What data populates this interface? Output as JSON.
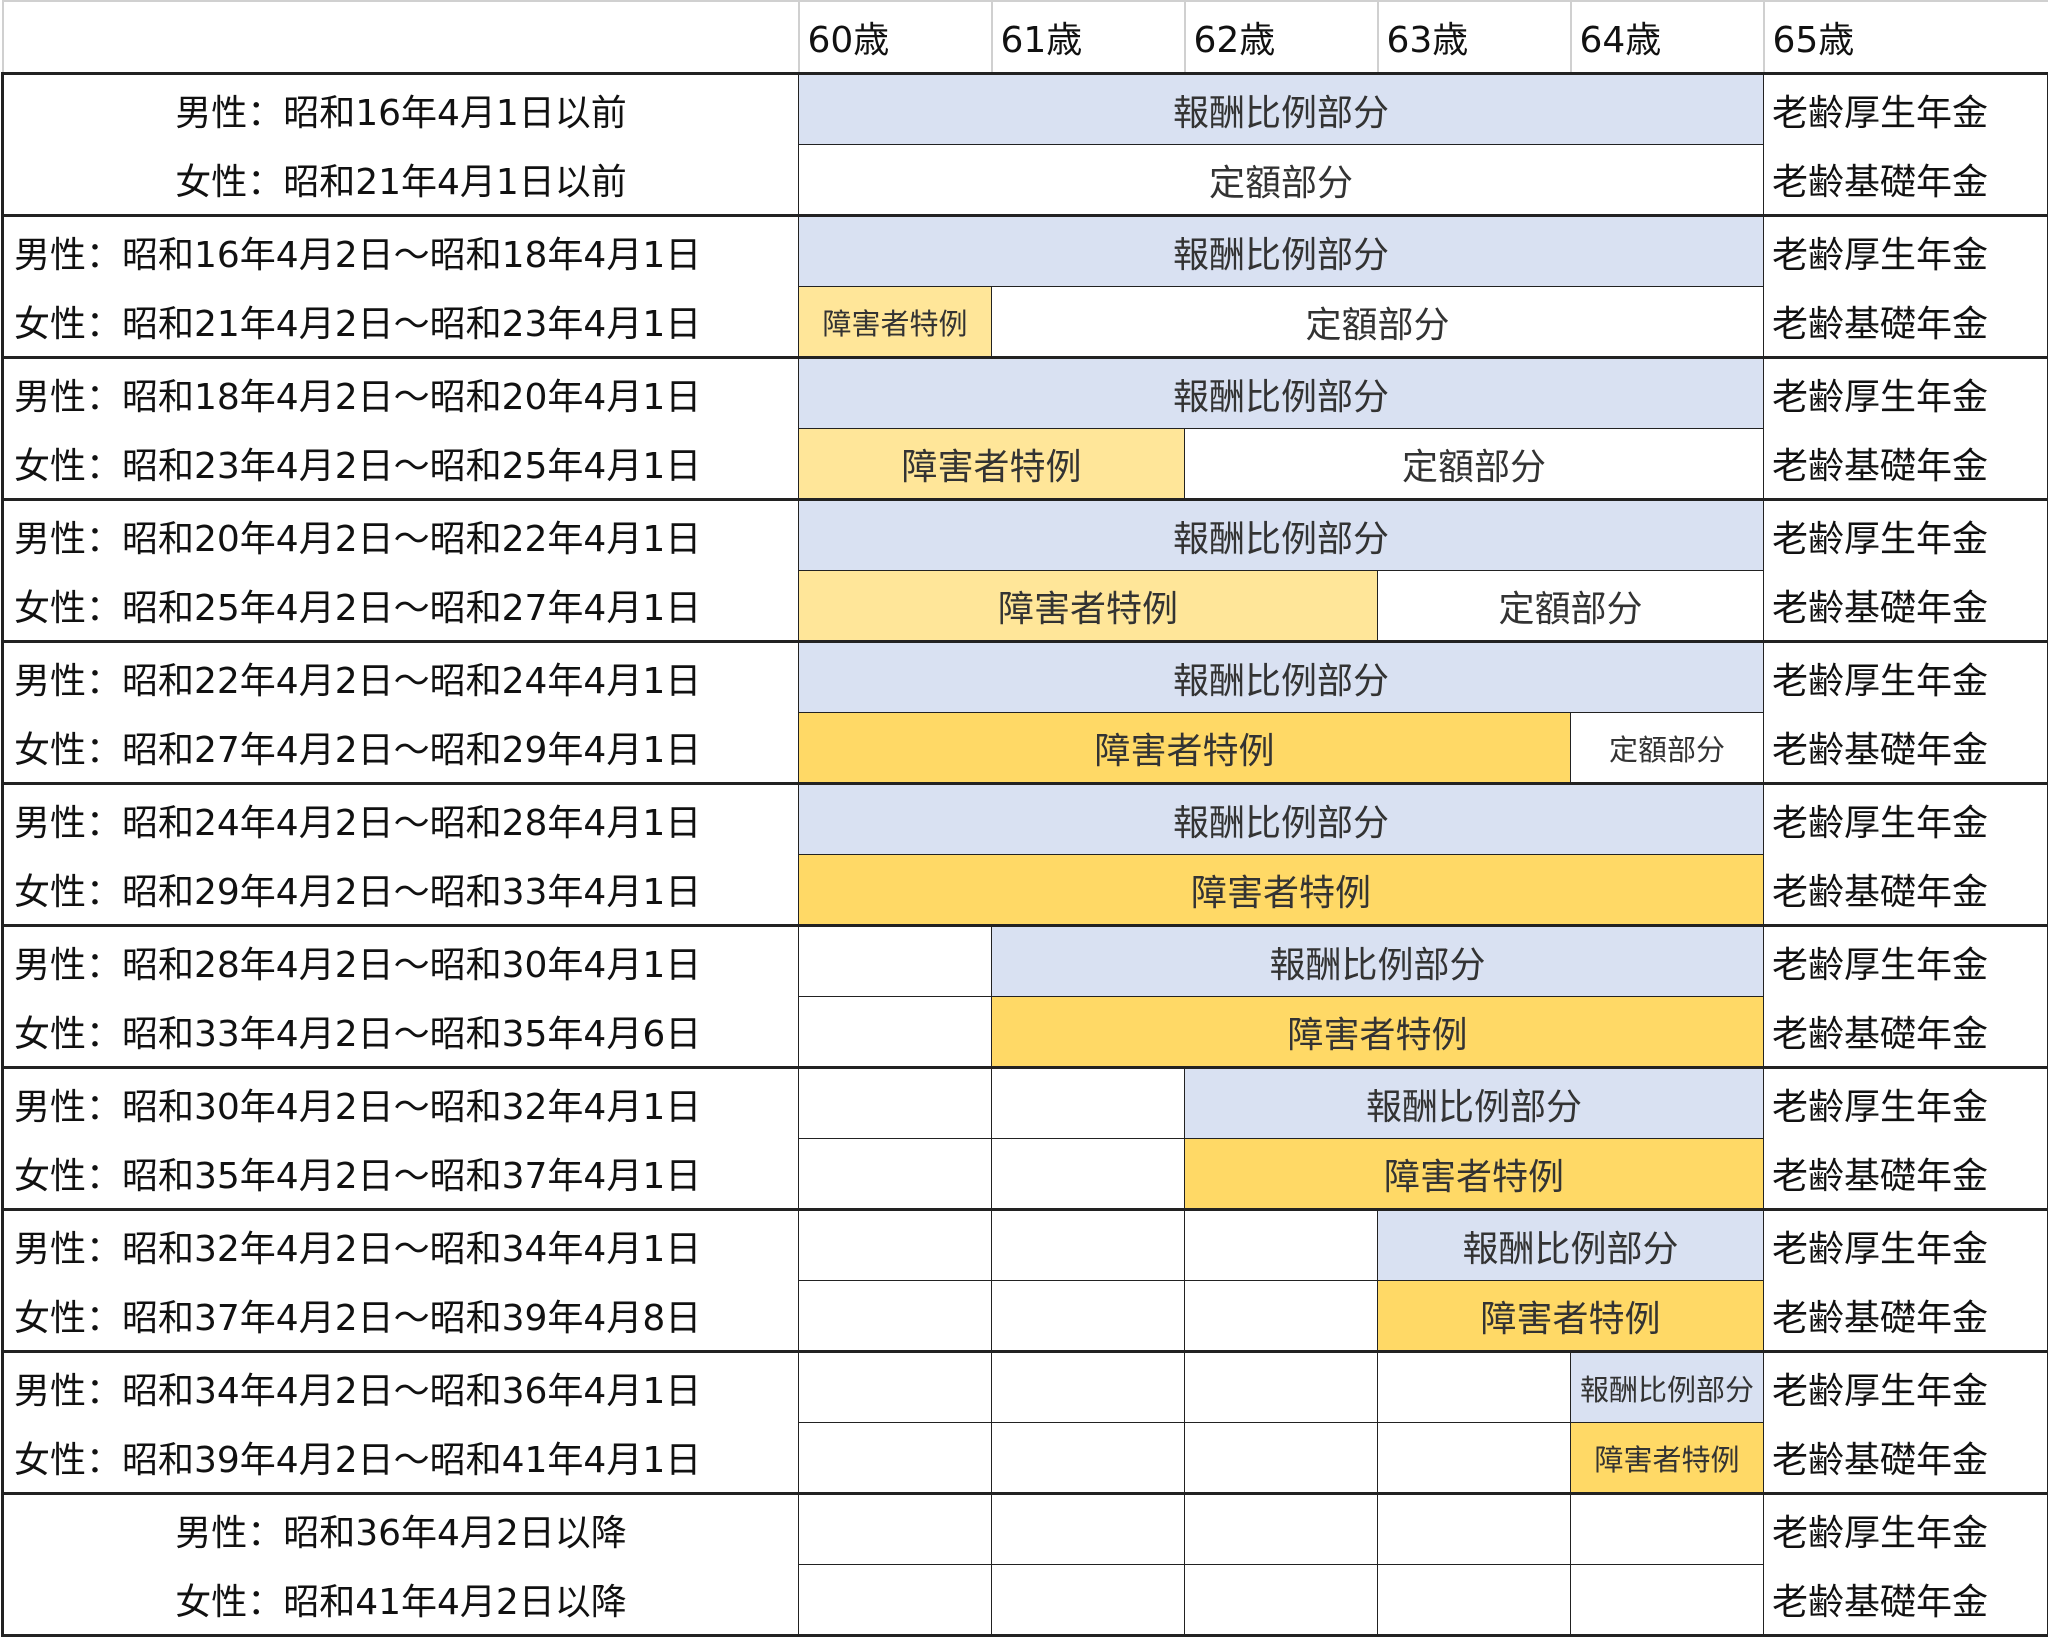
{
  "header": {
    "corner": "",
    "ages": [
      "60歳",
      "61歳",
      "62歳",
      "63歳",
      "64歳",
      "65歳"
    ]
  },
  "colors": {
    "blue": "#D9E1F2",
    "lightyellow": "#FFE699",
    "gold": "#FFD966"
  },
  "groups": [
    {
      "center": true,
      "rows": [
        {
          "label": "男性：昭和16年4月1日以前",
          "pension": "老齢厚生年金",
          "segments": [
            {
              "from": 60,
              "to": 65,
              "label": "報酬比例部分",
              "style": "blue"
            }
          ]
        },
        {
          "label": "女性：昭和21年4月1日以前",
          "pension": "老齢基礎年金",
          "segments": [
            {
              "from": 60,
              "to": 65,
              "label": "定額部分",
              "style": "white"
            }
          ]
        }
      ]
    },
    {
      "rows": [
        {
          "label": "男性：昭和16年4月2日～昭和18年4月1日",
          "pension": "老齢厚生年金",
          "segments": [
            {
              "from": 60,
              "to": 65,
              "label": "報酬比例部分",
              "style": "blue"
            }
          ]
        },
        {
          "label": "女性：昭和21年4月2日～昭和23年4月1日",
          "pension": "老齢基礎年金",
          "segments": [
            {
              "from": 60,
              "to": 61,
              "label": "障害者特例",
              "style": "lightyellow",
              "small": true
            },
            {
              "from": 61,
              "to": 65,
              "label": "定額部分",
              "style": "white"
            }
          ]
        }
      ]
    },
    {
      "rows": [
        {
          "label": "男性：昭和18年4月2日～昭和20年4月1日",
          "pension": "老齢厚生年金",
          "segments": [
            {
              "from": 60,
              "to": 65,
              "label": "報酬比例部分",
              "style": "blue"
            }
          ]
        },
        {
          "label": "女性：昭和23年4月2日～昭和25年4月1日",
          "pension": "老齢基礎年金",
          "segments": [
            {
              "from": 60,
              "to": 62,
              "label": "障害者特例",
              "style": "lightyellow"
            },
            {
              "from": 62,
              "to": 65,
              "label": "定額部分",
              "style": "white"
            }
          ]
        }
      ]
    },
    {
      "rows": [
        {
          "label": "男性：昭和20年4月2日～昭和22年4月1日",
          "pension": "老齢厚生年金",
          "segments": [
            {
              "from": 60,
              "to": 65,
              "label": "報酬比例部分",
              "style": "blue"
            }
          ]
        },
        {
          "label": "女性：昭和25年4月2日～昭和27年4月1日",
          "pension": "老齢基礎年金",
          "segments": [
            {
              "from": 60,
              "to": 63,
              "label": "障害者特例",
              "style": "lightyellow"
            },
            {
              "from": 63,
              "to": 65,
              "label": "定額部分",
              "style": "white"
            }
          ]
        }
      ]
    },
    {
      "rows": [
        {
          "label": "男性：昭和22年4月2日～昭和24年4月1日",
          "pension": "老齢厚生年金",
          "segments": [
            {
              "from": 60,
              "to": 65,
              "label": "報酬比例部分",
              "style": "blue"
            }
          ]
        },
        {
          "label": "女性：昭和27年4月2日～昭和29年4月1日",
          "pension": "老齢基礎年金",
          "segments": [
            {
              "from": 60,
              "to": 64,
              "label": "障害者特例",
              "style": "gold"
            },
            {
              "from": 64,
              "to": 65,
              "label": "定額部分",
              "style": "white",
              "small": true
            }
          ]
        }
      ]
    },
    {
      "rows": [
        {
          "label": "男性：昭和24年4月2日～昭和28年4月1日",
          "pension": "老齢厚生年金",
          "segments": [
            {
              "from": 60,
              "to": 65,
              "label": "報酬比例部分",
              "style": "blue"
            }
          ]
        },
        {
          "label": "女性：昭和29年4月2日～昭和33年4月1日",
          "pension": "老齢基礎年金",
          "segments": [
            {
              "from": 60,
              "to": 65,
              "label": "障害者特例",
              "style": "gold"
            }
          ]
        }
      ]
    },
    {
      "rows": [
        {
          "label": "男性：昭和28年4月2日～昭和30年4月1日",
          "pension": "老齢厚生年金",
          "segments": [
            {
              "from": 61,
              "to": 65,
              "label": "報酬比例部分",
              "style": "blue"
            }
          ]
        },
        {
          "label": "女性：昭和33年4月2日～昭和35年4月6日",
          "pension": "老齢基礎年金",
          "segments": [
            {
              "from": 61,
              "to": 65,
              "label": "障害者特例",
              "style": "gold"
            }
          ]
        }
      ]
    },
    {
      "rows": [
        {
          "label": "男性：昭和30年4月2日～昭和32年4月1日",
          "pension": "老齢厚生年金",
          "segments": [
            {
              "from": 62,
              "to": 65,
              "label": "報酬比例部分",
              "style": "blue"
            }
          ]
        },
        {
          "label": "女性：昭和35年4月2日～昭和37年4月1日",
          "pension": "老齢基礎年金",
          "segments": [
            {
              "from": 62,
              "to": 65,
              "label": "障害者特例",
              "style": "gold"
            }
          ]
        }
      ]
    },
    {
      "rows": [
        {
          "label": "男性：昭和32年4月2日～昭和34年4月1日",
          "pension": "老齢厚生年金",
          "segments": [
            {
              "from": 63,
              "to": 65,
              "label": "報酬比例部分",
              "style": "blue"
            }
          ]
        },
        {
          "label": "女性：昭和37年4月2日～昭和39年4月8日",
          "pension": "老齢基礎年金",
          "segments": [
            {
              "from": 63,
              "to": 65,
              "label": "障害者特例",
              "style": "gold"
            }
          ]
        }
      ]
    },
    {
      "rows": [
        {
          "label": "男性：昭和34年4月2日～昭和36年4月1日",
          "pension": "老齢厚生年金",
          "segments": [
            {
              "from": 64,
              "to": 65,
              "label": "報酬比例部分",
              "style": "blue",
              "small": true
            }
          ]
        },
        {
          "label": "女性：昭和39年4月2日～昭和41年4月1日",
          "pension": "老齢基礎年金",
          "segments": [
            {
              "from": 64,
              "to": 65,
              "label": "障害者特例",
              "style": "gold",
              "small": true
            }
          ]
        }
      ]
    },
    {
      "center": true,
      "rows": [
        {
          "label": "男性：昭和36年4月2日以降",
          "pension": "老齢厚生年金",
          "segments": []
        },
        {
          "label": "女性：昭和41年4月2日以降",
          "pension": "老齢基礎年金",
          "segments": []
        }
      ]
    }
  ]
}
